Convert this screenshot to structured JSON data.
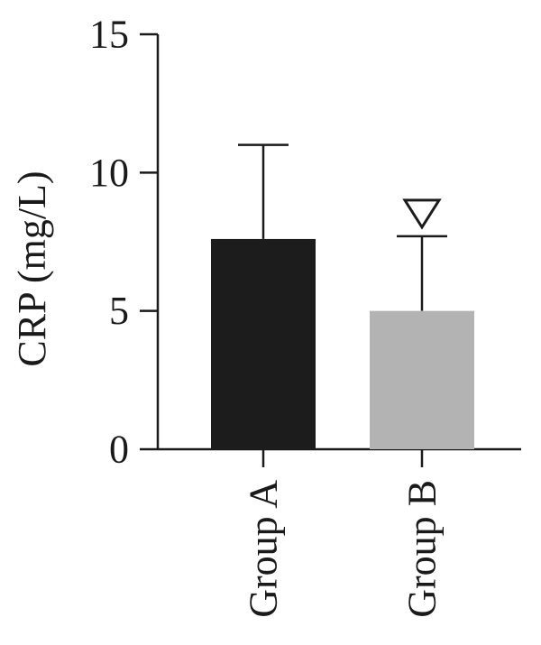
{
  "chart_data": {
    "type": "bar",
    "ylabel": "CRP (mg/L)",
    "xlabel": "",
    "ylim": [
      0,
      15
    ],
    "yticks": [
      "0",
      "5",
      "10",
      "15"
    ],
    "categories": [
      "Group A",
      "Group B"
    ],
    "values": [
      7.6,
      5.0
    ],
    "errors": [
      3.4,
      2.7
    ],
    "bar_colors": [
      "#1c1c1c",
      "#b3b3b3"
    ],
    "annotations": [
      {
        "category": "Group B",
        "symbol": "open-down-triangle"
      }
    ],
    "grid": false,
    "legend": "none"
  }
}
